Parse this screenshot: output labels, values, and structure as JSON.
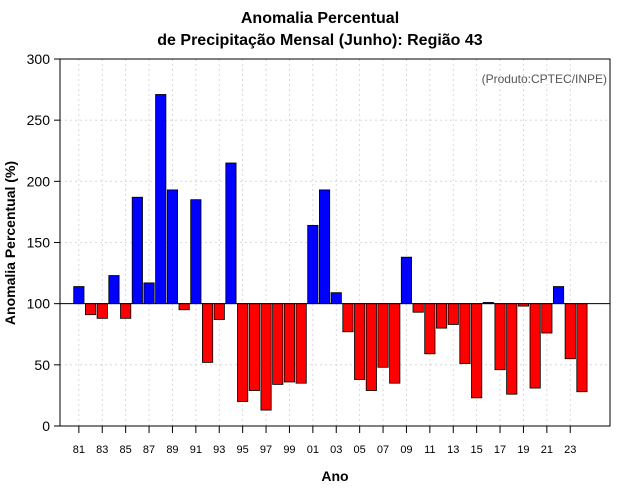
{
  "chart_data": {
    "type": "bar",
    "title": [
      "Anomalia Percentual",
      "de Precipitação Mensal (Junho): Região 43"
    ],
    "annotation": "(Produto:CPTEC/INPE)",
    "xlabel": "Ano",
    "ylabel": "Anomalia Percentual (%)",
    "ylim": [
      0,
      300
    ],
    "yticks": [
      0,
      50,
      100,
      150,
      200,
      250,
      300
    ],
    "baseline": 100,
    "grid": true,
    "colors": {
      "above": "#0000ff",
      "below": "#ff0000"
    },
    "categories": [
      "81",
      "82",
      "83",
      "84",
      "85",
      "86",
      "87",
      "88",
      "89",
      "90",
      "91",
      "92",
      "93",
      "94",
      "95",
      "96",
      "97",
      "98",
      "99",
      "00",
      "01",
      "02",
      "03",
      "04",
      "05",
      "06",
      "07",
      "08",
      "09",
      "10",
      "11",
      "12",
      "13",
      "14",
      "15",
      "16",
      "17",
      "18",
      "19",
      "20",
      "21",
      "22",
      "23",
      "24"
    ],
    "xtick_labels": [
      "81",
      "83",
      "85",
      "87",
      "89",
      "91",
      "93",
      "95",
      "97",
      "99",
      "01",
      "03",
      "05",
      "07",
      "09",
      "11",
      "13",
      "15",
      "17",
      "19",
      "21",
      "23"
    ],
    "values": [
      114,
      91,
      88,
      123,
      88,
      187,
      117,
      271,
      193,
      95,
      185,
      52,
      87,
      215,
      20,
      29,
      13,
      34,
      36,
      35,
      164,
      193,
      109,
      77,
      38,
      29,
      48,
      35,
      138,
      93,
      59,
      80,
      83,
      51,
      23,
      101,
      46,
      26,
      98,
      31,
      76,
      114,
      55,
      28
    ]
  }
}
